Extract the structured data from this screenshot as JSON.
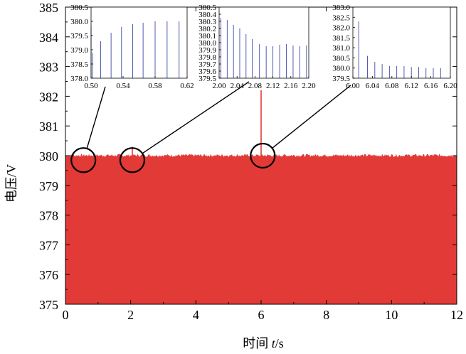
{
  "chart_data": {
    "type": "area",
    "xlabel": "时间 t/s",
    "xlabel_parts": [
      "时间 ",
      "t",
      "/s"
    ],
    "ylabel": "电压/V",
    "xlim": [
      0,
      12
    ],
    "ylim": [
      375,
      385
    ],
    "xticks": [
      0,
      2,
      4,
      6,
      8,
      10,
      12
    ],
    "yticks": [
      375,
      376,
      377,
      378,
      379,
      380,
      381,
      382,
      383,
      384,
      385
    ],
    "series_color": "#e23a36",
    "baseline": 380.0,
    "events": [
      {
        "x": 0.52,
        "y": 378.8
      },
      {
        "x": 2.05,
        "y": 380.3
      },
      {
        "x": 6.0,
        "y": 382.2
      }
    ],
    "highlight_circles": [
      {
        "x": 0.55,
        "y": 379.85
      },
      {
        "x": 2.05,
        "y": 379.85
      },
      {
        "x": 6.05,
        "y": 380.0
      }
    ],
    "insets": [
      {
        "xlim": [
          0.5,
          0.62
        ],
        "ylim": [
          378.0,
          380.5
        ],
        "xticks": [
          "0.50",
          "0.54",
          "0.58",
          "0.62"
        ],
        "yticks": [
          "378.0",
          "378.5",
          "379.0",
          "379.5",
          "380.0",
          "380.5"
        ],
        "spikes": [
          {
            "x": 0.502,
            "y": 378.9
          },
          {
            "x": 0.5,
            "y": 379.8
          },
          {
            "x": 0.512,
            "y": 379.3
          },
          {
            "x": 0.525,
            "y": 379.6
          },
          {
            "x": 0.538,
            "y": 379.8
          },
          {
            "x": 0.552,
            "y": 379.9
          },
          {
            "x": 0.565,
            "y": 379.95
          },
          {
            "x": 0.58,
            "y": 380.0
          },
          {
            "x": 0.595,
            "y": 380.0
          },
          {
            "x": 0.61,
            "y": 380.0
          }
        ]
      },
      {
        "xlim": [
          2.0,
          2.2
        ],
        "ylim": [
          379.5,
          380.5
        ],
        "xticks": [
          "2.00",
          "2.04",
          "2.08",
          "2.12",
          "2.16",
          "2.20"
        ],
        "yticks": [
          "379.5",
          "379.6",
          "379.7",
          "379.8",
          "379.9",
          "380.0",
          "380.1",
          "380.2",
          "380.3",
          "380.4",
          "380.5"
        ],
        "spikes": [
          {
            "x": 2.004,
            "y": 380.35
          },
          {
            "x": 2.018,
            "y": 380.32
          },
          {
            "x": 2.032,
            "y": 380.25
          },
          {
            "x": 2.046,
            "y": 380.2
          },
          {
            "x": 2.06,
            "y": 380.12
          },
          {
            "x": 2.074,
            "y": 380.05
          },
          {
            "x": 2.09,
            "y": 379.98
          },
          {
            "x": 2.105,
            "y": 379.95
          },
          {
            "x": 2.12,
            "y": 379.95
          },
          {
            "x": 2.135,
            "y": 379.97
          },
          {
            "x": 2.15,
            "y": 379.98
          },
          {
            "x": 2.165,
            "y": 379.96
          },
          {
            "x": 2.18,
            "y": 379.95
          },
          {
            "x": 2.195,
            "y": 379.96
          }
        ]
      },
      {
        "xlim": [
          6.0,
          6.2
        ],
        "ylim": [
          379.5,
          383.0
        ],
        "xticks": [
          "6.00",
          "6.04",
          "6.08",
          "6.12",
          "6.16",
          "6.20"
        ],
        "yticks": [
          "379.5",
          "380.0",
          "380.5",
          "381.0",
          "381.5",
          "382.0",
          "382.5",
          "383.0"
        ],
        "spikes": [
          {
            "x": 6.012,
            "y": 382.3
          },
          {
            "x": 6.03,
            "y": 380.6
          },
          {
            "x": 6.045,
            "y": 380.3
          },
          {
            "x": 6.06,
            "y": 380.2
          },
          {
            "x": 6.075,
            "y": 380.1
          },
          {
            "x": 6.09,
            "y": 380.1
          },
          {
            "x": 6.105,
            "y": 380.1
          },
          {
            "x": 6.12,
            "y": 380.05
          },
          {
            "x": 6.135,
            "y": 380.05
          },
          {
            "x": 6.15,
            "y": 380.0
          },
          {
            "x": 6.165,
            "y": 380.0
          },
          {
            "x": 6.18,
            "y": 380.0
          }
        ]
      }
    ]
  }
}
